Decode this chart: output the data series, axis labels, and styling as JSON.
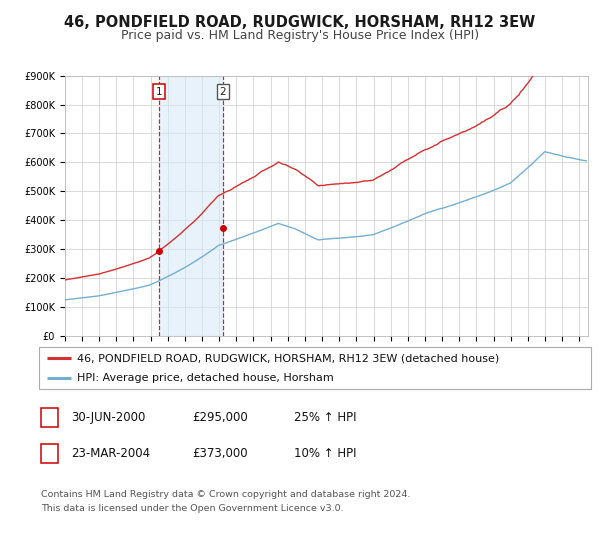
{
  "title": "46, PONDFIELD ROAD, RUDGWICK, HORSHAM, RH12 3EW",
  "subtitle": "Price paid vs. HM Land Registry's House Price Index (HPI)",
  "background_color": "#ffffff",
  "grid_color": "#cccccc",
  "xlim_start": 1995.0,
  "xlim_end": 2025.5,
  "ylim_min": 0,
  "ylim_max": 900000,
  "transaction1_date": 2000.49,
  "transaction1_price": 295000,
  "transaction2_date": 2004.22,
  "transaction2_price": 373000,
  "shade_color": "#d6e8f7",
  "hpi_line_color": "#74afd3",
  "price_line_color": "#d63030",
  "marker_color": "#cc0000",
  "dashed_color": "#cc0000",
  "legend_label_price": "46, PONDFIELD ROAD, RUDGWICK, HORSHAM, RH12 3EW (detached house)",
  "legend_label_hpi": "HPI: Average price, detached house, Horsham",
  "table_row1_num": "1",
  "table_row1_date": "30-JUN-2000",
  "table_row1_price": "£295,000",
  "table_row1_hpi": "25% ↑ HPI",
  "table_row2_num": "2",
  "table_row2_date": "23-MAR-2004",
  "table_row2_price": "£373,000",
  "table_row2_hpi": "10% ↑ HPI",
  "footnote1": "Contains HM Land Registry data © Crown copyright and database right 2024.",
  "footnote2": "This data is licensed under the Open Government Licence v3.0.",
  "title_fontsize": 10.5,
  "subtitle_fontsize": 9.0,
  "tick_fontsize": 7.0,
  "legend_fontsize": 8.0,
  "table_fontsize": 8.5,
  "footnote_fontsize": 6.8
}
